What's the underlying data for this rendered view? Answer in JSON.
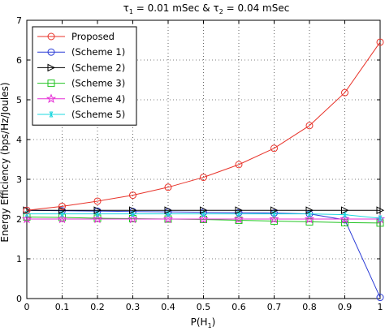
{
  "chart_data": {
    "type": "line",
    "title_parts": {
      "t1": "τ",
      "sub1": "1",
      "mid": " = 0.01 mSec & ",
      "t2": "τ",
      "sub2": "2",
      "end": " = 0.04 mSec"
    },
    "xlabel_parts": {
      "main": "P(H",
      "sub": "1",
      "end": ")"
    },
    "ylabel": "Energy Efficiency (bps/Hz/Joules)",
    "xlim": [
      0,
      1
    ],
    "ylim": [
      0,
      7
    ],
    "x": [
      0,
      0.1,
      0.2,
      0.3,
      0.4,
      0.5,
      0.6,
      0.7,
      0.8,
      0.9,
      1
    ],
    "xticks": [
      "0",
      "0.1",
      "0.2",
      "0.3",
      "0.4",
      "0.5",
      "0.6",
      "0.7",
      "0.8",
      "0.9",
      "1"
    ],
    "yticks": [
      "0",
      "1",
      "2",
      "3",
      "4",
      "5",
      "6",
      "7"
    ],
    "grid": true,
    "legend_position": "top-left",
    "series": [
      {
        "name": "Proposed",
        "color": "#e8332a",
        "marker": "circle",
        "values": [
          2.22,
          2.32,
          2.45,
          2.6,
          2.8,
          3.05,
          3.37,
          3.78,
          4.35,
          5.18,
          6.45
        ]
      },
      {
        "name": "(Scheme 1)",
        "color": "#2a3bd6",
        "marker": "circle",
        "values": [
          2.22,
          2.21,
          2.2,
          2.19,
          2.18,
          2.17,
          2.16,
          2.15,
          2.13,
          1.98,
          0.03
        ]
      },
      {
        "name": "(Scheme 2)",
        "color": "#000000",
        "marker": "triangle-right",
        "values": [
          2.22,
          2.22,
          2.22,
          2.22,
          2.22,
          2.22,
          2.22,
          2.22,
          2.22,
          2.22,
          2.22
        ]
      },
      {
        "name": "(Scheme 3)",
        "color": "#22c322",
        "marker": "square",
        "values": [
          2.05,
          2.04,
          2.02,
          2.01,
          2.0,
          1.99,
          1.97,
          1.95,
          1.93,
          1.91,
          1.9
        ]
      },
      {
        "name": "(Scheme 4)",
        "color": "#e62ed6",
        "marker": "star",
        "values": [
          2.0,
          2.0,
          2.0,
          2.0,
          2.0,
          2.0,
          2.0,
          2.0,
          2.0,
          2.0,
          2.0
        ]
      },
      {
        "name": "(Scheme 5)",
        "color": "#1ed8e0",
        "marker": "asterisk",
        "values": [
          2.13,
          2.13,
          2.13,
          2.13,
          2.13,
          2.13,
          2.13,
          2.13,
          2.13,
          2.11,
          2.02
        ]
      }
    ]
  }
}
